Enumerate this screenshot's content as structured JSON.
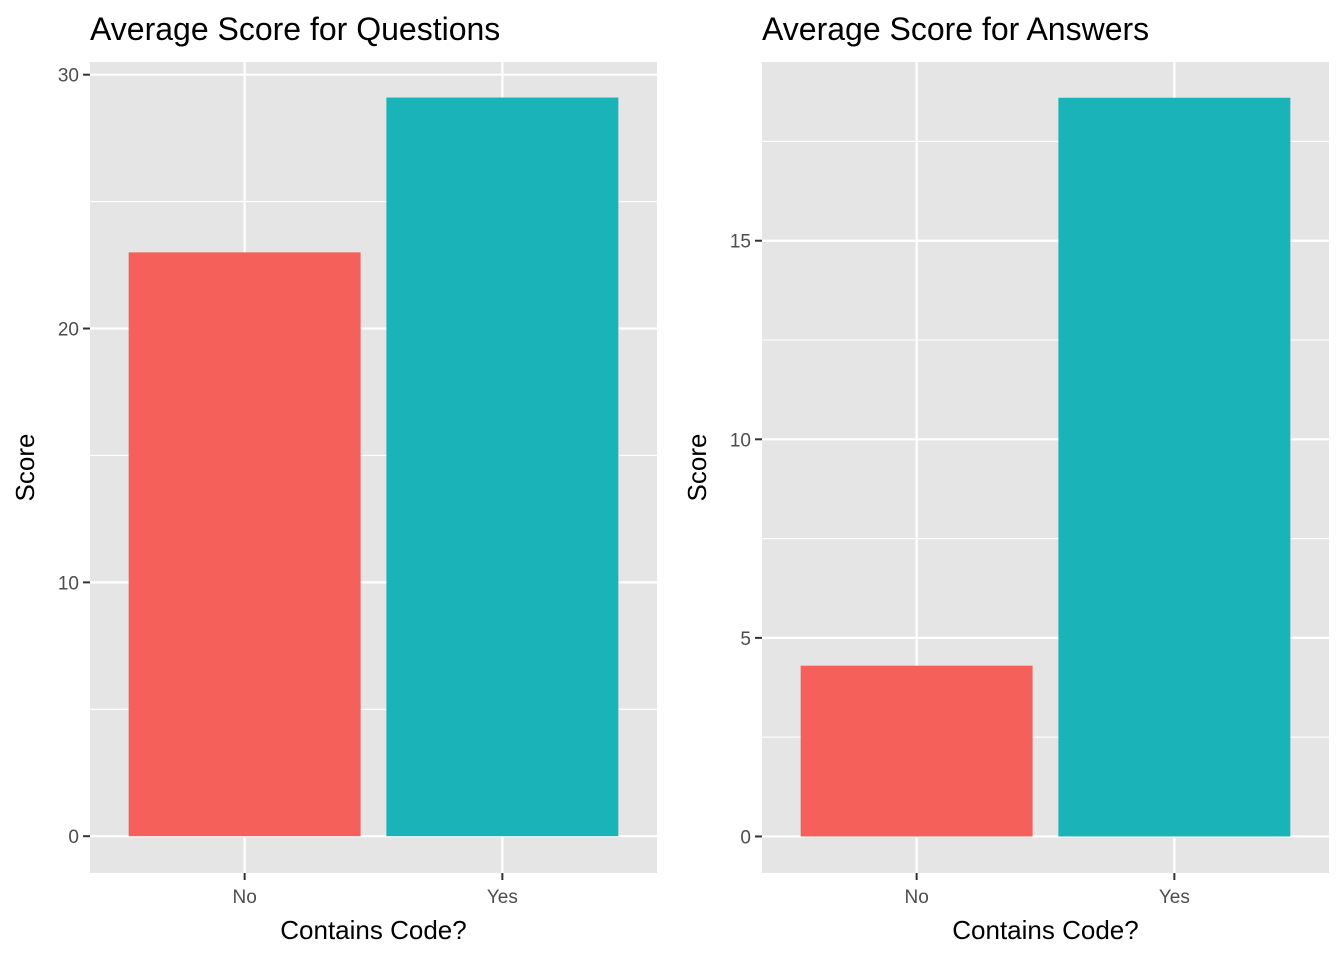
{
  "chart_data": [
    {
      "type": "bar",
      "title": "Average Score for Questions",
      "xlabel": "Contains Code?",
      "ylabel": "Score",
      "categories": [
        "No",
        "Yes"
      ],
      "values": [
        23.0,
        29.1
      ],
      "colors": [
        "#F5605B",
        "#1AB3B8"
      ],
      "ylim": [
        -1.45,
        30.5
      ],
      "yticks": [
        0,
        10,
        20,
        30
      ],
      "yminor": [
        5,
        15,
        25
      ],
      "grid": true,
      "legend": "none",
      "panel_background": "#E5E5E5",
      "grid_color": "#FFFFFF"
    },
    {
      "type": "bar",
      "title": "Average Score for Answers",
      "xlabel": "Contains Code?",
      "ylabel": "Score",
      "categories": [
        "No",
        "Yes"
      ],
      "values": [
        4.3,
        18.6
      ],
      "colors": [
        "#F5605B",
        "#1AB3B8"
      ],
      "ylim": [
        -0.92,
        19.5
      ],
      "yticks": [
        0,
        5,
        10,
        15
      ],
      "yminor": [
        2.5,
        7.5,
        12.5,
        17.5
      ],
      "grid": true,
      "legend": "none",
      "panel_background": "#E5E5E5",
      "grid_color": "#FFFFFF"
    }
  ]
}
